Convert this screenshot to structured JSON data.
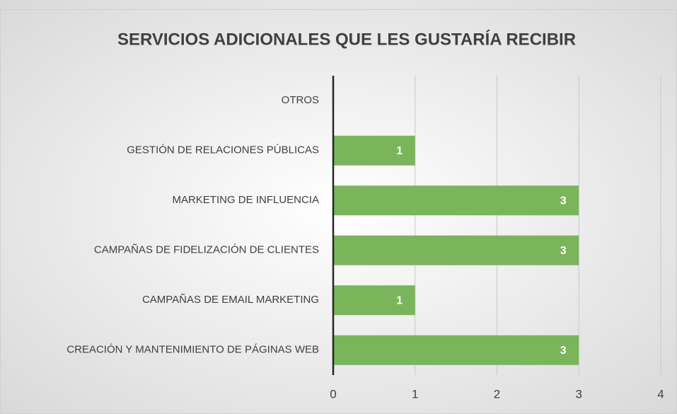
{
  "chart_data": {
    "type": "barh",
    "title": "SERVICIOS ADICIONALES QUE LES GUSTARÍA RECIBIR",
    "categories": [
      "OTROS",
      "GESTIÓN DE RELACIONES PÚBLICAS",
      "MARKETING DE INFLUENCIA",
      "CAMPAÑAS DE FIDELIZACIÓN DE CLIENTES",
      "CAMPAÑAS DE EMAIL MARKETING",
      "CREACIÓN Y MANTENIMIENTO DE PÁGINAS WEB"
    ],
    "values": [
      0,
      1,
      3,
      3,
      1,
      3
    ],
    "color": "#7ab55c",
    "xlim": [
      0,
      4
    ],
    "xticks": [
      0,
      1,
      2,
      3,
      4
    ],
    "grid": true
  }
}
